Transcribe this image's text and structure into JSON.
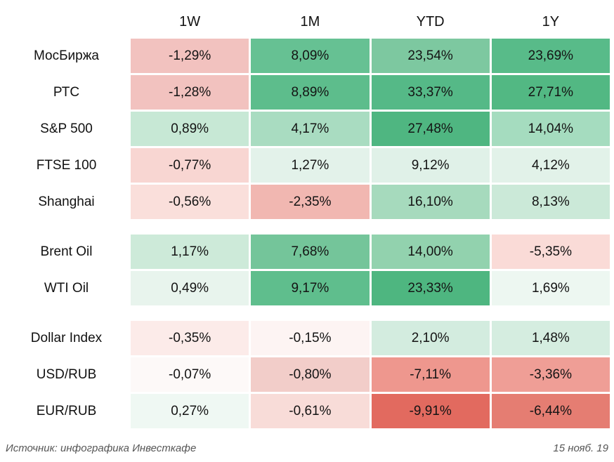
{
  "columns": [
    "1W",
    "1M",
    "YTD",
    "1Y"
  ],
  "sections": [
    {
      "rows": [
        {
          "label": "МосБиржа",
          "cells": [
            {
              "text": "-1,29%",
              "bg": "#f2c2bf"
            },
            {
              "text": "8,09%",
              "bg": "#66c193"
            },
            {
              "text": "23,54%",
              "bg": "#7dc8a0"
            },
            {
              "text": "23,69%",
              "bg": "#58bb89"
            }
          ]
        },
        {
          "label": "РТС",
          "cells": [
            {
              "text": "-1,28%",
              "bg": "#f2c2bf"
            },
            {
              "text": "8,89%",
              "bg": "#5dbd8c"
            },
            {
              "text": "33,37%",
              "bg": "#55b987"
            },
            {
              "text": "27,71%",
              "bg": "#52b883"
            }
          ]
        },
        {
          "label": "S&P 500",
          "cells": [
            {
              "text": "0,89%",
              "bg": "#c7e8d5"
            },
            {
              "text": "4,17%",
              "bg": "#a9dcc1"
            },
            {
              "text": "27,48%",
              "bg": "#4fb681"
            },
            {
              "text": "14,04%",
              "bg": "#a5dcbf"
            }
          ]
        },
        {
          "label": "FTSE 100",
          "cells": [
            {
              "text": "-0,77%",
              "bg": "#f8d6d2"
            },
            {
              "text": "1,27%",
              "bg": "#e3f2ea"
            },
            {
              "text": "9,12%",
              "bg": "#e0f1e8"
            },
            {
              "text": "4,12%",
              "bg": "#e2f2e9"
            }
          ]
        },
        {
          "label": "Shanghai",
          "cells": [
            {
              "text": "-0,56%",
              "bg": "#fadfdb"
            },
            {
              "text": "-2,35%",
              "bg": "#f1b7b1"
            },
            {
              "text": "16,10%",
              "bg": "#a6dabd"
            },
            {
              "text": "8,13%",
              "bg": "#cbe9d8"
            }
          ]
        }
      ]
    },
    {
      "rows": [
        {
          "label": "Brent Oil",
          "cells": [
            {
              "text": "1,17%",
              "bg": "#cdead9"
            },
            {
              "text": "7,68%",
              "bg": "#74c59a"
            },
            {
              "text": "14,00%",
              "bg": "#92d2ae"
            },
            {
              "text": "-5,35%",
              "bg": "#fadbd7"
            }
          ]
        },
        {
          "label": "WTI Oil",
          "cells": [
            {
              "text": "0,49%",
              "bg": "#e8f4ed"
            },
            {
              "text": "9,17%",
              "bg": "#5fbe8d"
            },
            {
              "text": "23,33%",
              "bg": "#4eb680"
            },
            {
              "text": "1,69%",
              "bg": "#edf7f1"
            }
          ]
        }
      ]
    },
    {
      "rows": [
        {
          "label": "Dollar Index",
          "cells": [
            {
              "text": "-0,35%",
              "bg": "#fcebe9"
            },
            {
              "text": "-0,15%",
              "bg": "#fdf4f3"
            },
            {
              "text": "2,10%",
              "bg": "#d3ecdf"
            },
            {
              "text": "1,48%",
              "bg": "#d5ede0"
            }
          ]
        },
        {
          "label": "USD/RUB",
          "cells": [
            {
              "text": "-0,07%",
              "bg": "#fdf9f8"
            },
            {
              "text": "-0,80%",
              "bg": "#f2cdc9"
            },
            {
              "text": "-7,11%",
              "bg": "#ee978e"
            },
            {
              "text": "-3,36%",
              "bg": "#ef9e96"
            }
          ]
        },
        {
          "label": "EUR/RUB",
          "cells": [
            {
              "text": "0,27%",
              "bg": "#eff8f3"
            },
            {
              "text": "-0,61%",
              "bg": "#f8dcd8"
            },
            {
              "text": "-9,91%",
              "bg": "#e26a5f"
            },
            {
              "text": "-6,44%",
              "bg": "#e57d72"
            }
          ]
        }
      ]
    }
  ],
  "footer": {
    "source": "Источник: инфографика Инвесткафе",
    "date": "15 нояб. 19"
  },
  "colors": {
    "background": "#ffffff",
    "cell_text": "#141414",
    "header_text": "#111111",
    "footer_text": "#565656",
    "max_green": "#4eb680",
    "max_red": "#e26a5f"
  },
  "chart_data": {
    "type": "heatmap",
    "title": "",
    "columns": [
      "1W",
      "1M",
      "YTD",
      "1Y"
    ],
    "row_groups": [
      [
        "МосБиржа",
        "РТС",
        "S&P 500",
        "FTSE 100",
        "Shanghai"
      ],
      [
        "Brent Oil",
        "WTI Oil"
      ],
      [
        "Dollar Index",
        "USD/RUB",
        "EUR/RUB"
      ]
    ],
    "rows": [
      "МосБиржа",
      "РТС",
      "S&P 500",
      "FTSE 100",
      "Shanghai",
      "Brent Oil",
      "WTI Oil",
      "Dollar Index",
      "USD/RUB",
      "EUR/RUB"
    ],
    "values_percent": [
      [
        -1.29,
        8.09,
        23.54,
        23.69
      ],
      [
        -1.28,
        8.89,
        33.37,
        27.71
      ],
      [
        0.89,
        4.17,
        27.48,
        14.04
      ],
      [
        -0.77,
        1.27,
        9.12,
        4.12
      ],
      [
        -0.56,
        -2.35,
        16.1,
        8.13
      ],
      [
        1.17,
        7.68,
        14.0,
        -5.35
      ],
      [
        0.49,
        9.17,
        23.33,
        1.69
      ],
      [
        -0.35,
        -0.15,
        2.1,
        1.48
      ],
      [
        -0.07,
        -0.8,
        -7.11,
        -3.36
      ],
      [
        0.27,
        -0.61,
        -9.91,
        -6.44
      ]
    ],
    "colormap": "red-white-green diverging, positive=green negative=red",
    "legend": "none",
    "source": "Источник: инфографика Инвесткафе",
    "date": "15 нояб. 19"
  }
}
